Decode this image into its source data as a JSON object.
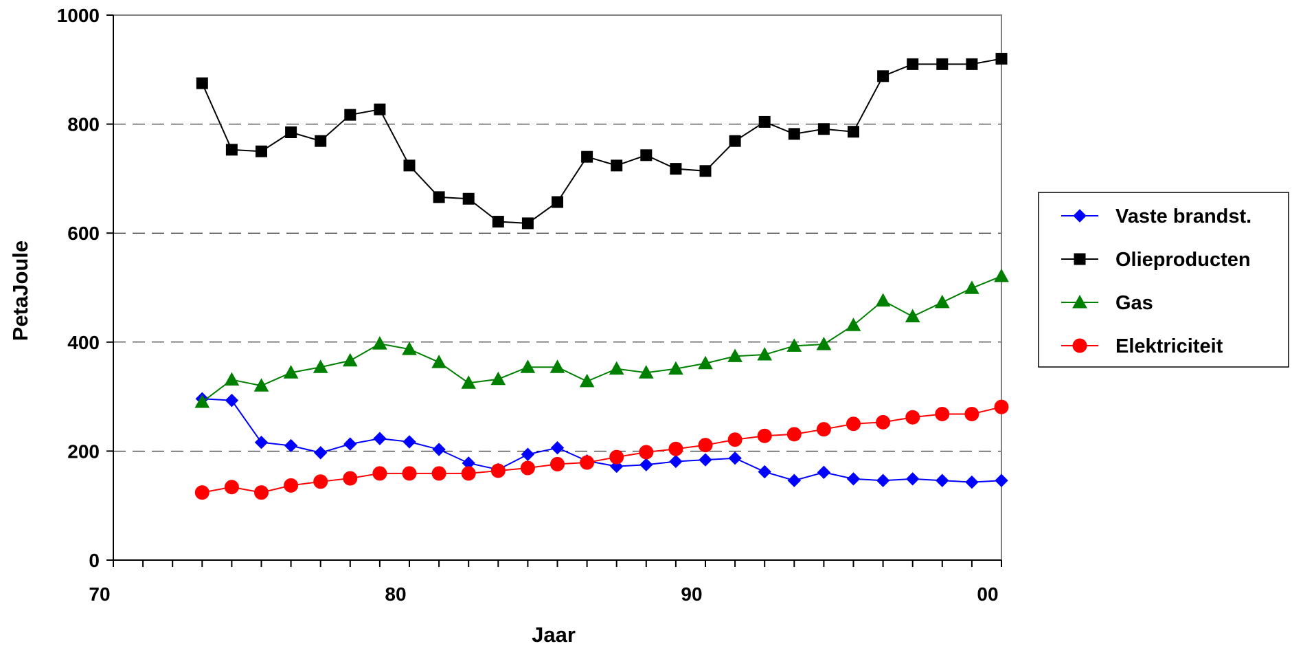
{
  "chart_data": {
    "type": "line",
    "title": "",
    "xlabel": "Jaar",
    "ylabel": "PetaJoule",
    "x_tick_labels": [
      "70",
      "80",
      "90",
      "00"
    ],
    "y_ticks": [
      0,
      200,
      400,
      600,
      800,
      1000
    ],
    "xlim": [
      1970,
      2000
    ],
    "ylim": [
      0,
      1000
    ],
    "grid": "horizontal dashed",
    "legend_position": "right",
    "x": [
      1973,
      1974,
      1975,
      1976,
      1977,
      1978,
      1979,
      1980,
      1981,
      1982,
      1983,
      1984,
      1985,
      1986,
      1987,
      1988,
      1989,
      1990,
      1991,
      1992,
      1993,
      1994,
      1995,
      1996,
      1997,
      1998,
      1999,
      2000
    ],
    "series": [
      {
        "name": "Vaste brandst.",
        "color": "#0000ff",
        "marker": "diamond",
        "values": [
          296,
          293,
          216,
          210,
          197,
          213,
          223,
          217,
          203,
          178,
          166,
          194,
          206,
          182,
          172,
          175,
          181,
          184,
          187,
          162,
          146,
          161,
          149,
          146,
          149,
          146,
          143,
          146
        ]
      },
      {
        "name": "Olieproducten",
        "color": "#000000",
        "marker": "square",
        "values": [
          875,
          753,
          750,
          785,
          769,
          817,
          827,
          724,
          666,
          663,
          621,
          618,
          657,
          740,
          724,
          743,
          718,
          714,
          769,
          804,
          782,
          791,
          786,
          888,
          910,
          910,
          910,
          920
        ]
      },
      {
        "name": "Gas",
        "color": "#008000",
        "marker": "triangle",
        "values": [
          290,
          331,
          320,
          344,
          354,
          366,
          397,
          387,
          363,
          325,
          332,
          354,
          354,
          328,
          351,
          344,
          351,
          361,
          374,
          377,
          393,
          396,
          431,
          476,
          447,
          473,
          499,
          521
        ]
      },
      {
        "name": "Elektriciteit",
        "color": "#ff0000",
        "marker": "circle",
        "values": [
          124,
          134,
          124,
          137,
          144,
          150,
          159,
          159,
          159,
          159,
          164,
          169,
          176,
          179,
          189,
          198,
          204,
          211,
          221,
          228,
          231,
          240,
          250,
          253,
          262,
          268,
          268,
          281
        ]
      }
    ]
  }
}
